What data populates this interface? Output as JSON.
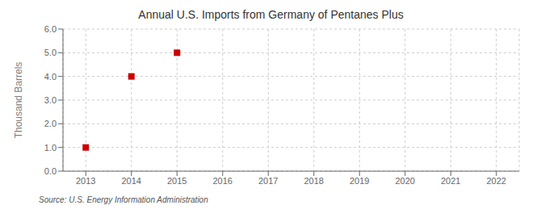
{
  "chart_data": {
    "type": "scatter",
    "title": "Annual U.S. Imports from Germany of Pentanes Plus",
    "ylabel": "Thousand Barrels",
    "annotations": [
      "Source: U.S. Energy Information Administration"
    ],
    "x": [
      2013,
      2014,
      2015
    ],
    "values": [
      1.0,
      4.0,
      5.0
    ],
    "xlim": [
      2012.5,
      2022.5
    ],
    "ylim": [
      0.0,
      6.0
    ],
    "xticks": [
      2013,
      2014,
      2015,
      2016,
      2017,
      2018,
      2019,
      2020,
      2021,
      2022
    ],
    "yticks": [
      {
        "value": 0.0,
        "label": "0.0"
      },
      {
        "value": 1.0,
        "label": "1.0"
      },
      {
        "value": 2.0,
        "label": "2.0"
      },
      {
        "value": 3.0,
        "label": "3.0"
      },
      {
        "value": 4.0,
        "label": "4.0"
      },
      {
        "value": 5.0,
        "label": "5.0"
      },
      {
        "value": 6.0,
        "label": "6.0"
      }
    ],
    "grid": true,
    "color": "#CC0000",
    "marker": "square"
  }
}
